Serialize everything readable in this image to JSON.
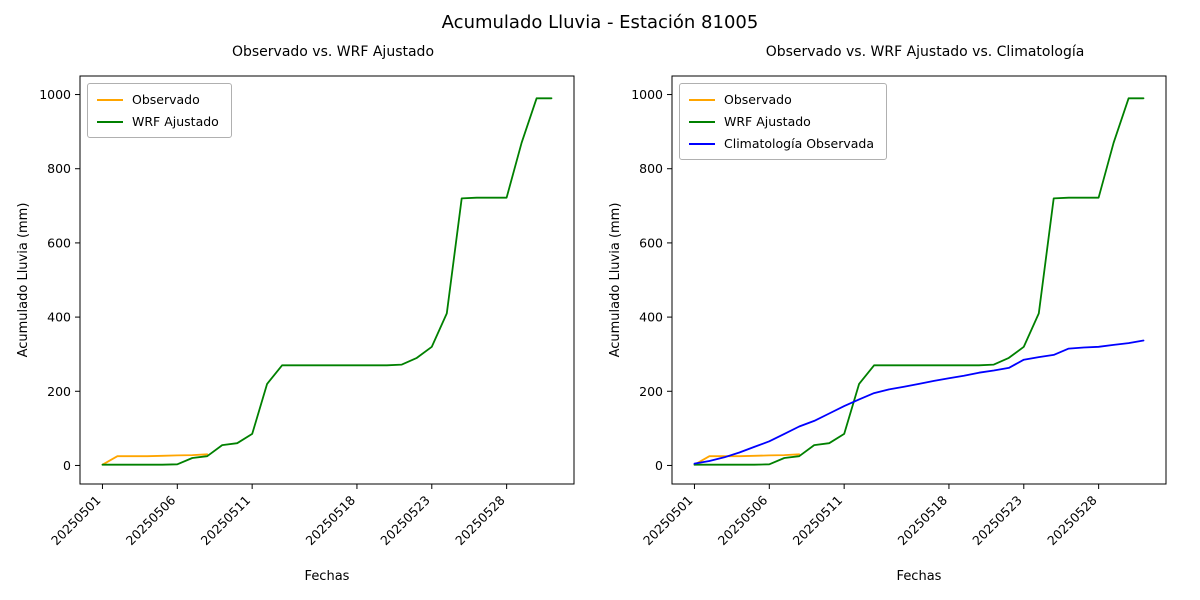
{
  "figure_title": "Acumulado Lluvia - Estación 81005",
  "chart_data": [
    {
      "type": "line",
      "title": "Observado vs. WRF Ajustado",
      "xlabel": "Fechas",
      "ylabel": "Acumulado Lluvia (mm)",
      "xlim": [
        -0.5,
        32.5
      ],
      "ylim": [
        -50,
        1050
      ],
      "yticks": [
        0,
        200,
        400,
        600,
        800,
        1000
      ],
      "xticks": [
        {
          "x": 1,
          "label": "20250501"
        },
        {
          "x": 6,
          "label": "20250506"
        },
        {
          "x": 11,
          "label": "20250511"
        },
        {
          "x": 18,
          "label": "20250518"
        },
        {
          "x": 23,
          "label": "20250523"
        },
        {
          "x": 28,
          "label": "20250528"
        }
      ],
      "grid": false,
      "legend_position": "upper-left",
      "series": [
        {
          "name": "Observado",
          "color": "#FFA500",
          "x": [
            1,
            2,
            3,
            4,
            5,
            6,
            7,
            8
          ],
          "y": [
            2,
            25,
            25,
            25,
            26,
            27,
            28,
            30
          ]
        },
        {
          "name": "WRF Ajustado",
          "color": "#008000",
          "x": [
            1,
            2,
            3,
            4,
            5,
            6,
            7,
            8,
            9,
            10,
            11,
            12,
            13,
            14,
            15,
            16,
            17,
            18,
            19,
            20,
            21,
            22,
            23,
            24,
            25,
            26,
            27,
            28,
            29,
            30,
            31
          ],
          "y": [
            2,
            2,
            2,
            2,
            2,
            3,
            20,
            25,
            55,
            60,
            85,
            220,
            270,
            270,
            270,
            270,
            270,
            270,
            270,
            270,
            272,
            290,
            320,
            410,
            720,
            722,
            722,
            722,
            870,
            990,
            990
          ]
        }
      ]
    },
    {
      "type": "line",
      "title": "Observado vs. WRF Ajustado vs. Climatología",
      "xlabel": "Fechas",
      "ylabel": "Acumulado Lluvia (mm)",
      "xlim": [
        -0.5,
        32.5
      ],
      "ylim": [
        -50,
        1050
      ],
      "yticks": [
        0,
        200,
        400,
        600,
        800,
        1000
      ],
      "xticks": [
        {
          "x": 1,
          "label": "20250501"
        },
        {
          "x": 6,
          "label": "20250506"
        },
        {
          "x": 11,
          "label": "20250511"
        },
        {
          "x": 18,
          "label": "20250518"
        },
        {
          "x": 23,
          "label": "20250523"
        },
        {
          "x": 28,
          "label": "20250528"
        }
      ],
      "grid": false,
      "legend_position": "upper-left",
      "series": [
        {
          "name": "Observado",
          "color": "#FFA500",
          "x": [
            1,
            2,
            3,
            4,
            5,
            6,
            7,
            8
          ],
          "y": [
            2,
            25,
            25,
            25,
            26,
            27,
            28,
            30
          ]
        },
        {
          "name": "WRF Ajustado",
          "color": "#008000",
          "x": [
            1,
            2,
            3,
            4,
            5,
            6,
            7,
            8,
            9,
            10,
            11,
            12,
            13,
            14,
            15,
            16,
            17,
            18,
            19,
            20,
            21,
            22,
            23,
            24,
            25,
            26,
            27,
            28,
            29,
            30,
            31
          ],
          "y": [
            2,
            2,
            2,
            2,
            2,
            3,
            20,
            25,
            55,
            60,
            85,
            220,
            270,
            270,
            270,
            270,
            270,
            270,
            270,
            270,
            272,
            290,
            320,
            410,
            720,
            722,
            722,
            722,
            870,
            990,
            990
          ]
        },
        {
          "name": "Climatología Observada",
          "color": "#0000FF",
          "x": [
            1,
            2,
            3,
            4,
            5,
            6,
            7,
            8,
            9,
            10,
            11,
            12,
            13,
            14,
            15,
            16,
            17,
            18,
            19,
            20,
            21,
            22,
            23,
            24,
            25,
            26,
            27,
            28,
            29,
            30,
            31
          ],
          "y": [
            5,
            12,
            22,
            35,
            50,
            65,
            85,
            105,
            120,
            140,
            160,
            178,
            195,
            205,
            212,
            220,
            228,
            235,
            242,
            250,
            256,
            263,
            285,
            292,
            298,
            315,
            318,
            320,
            325,
            330,
            337
          ]
        }
      ]
    }
  ]
}
